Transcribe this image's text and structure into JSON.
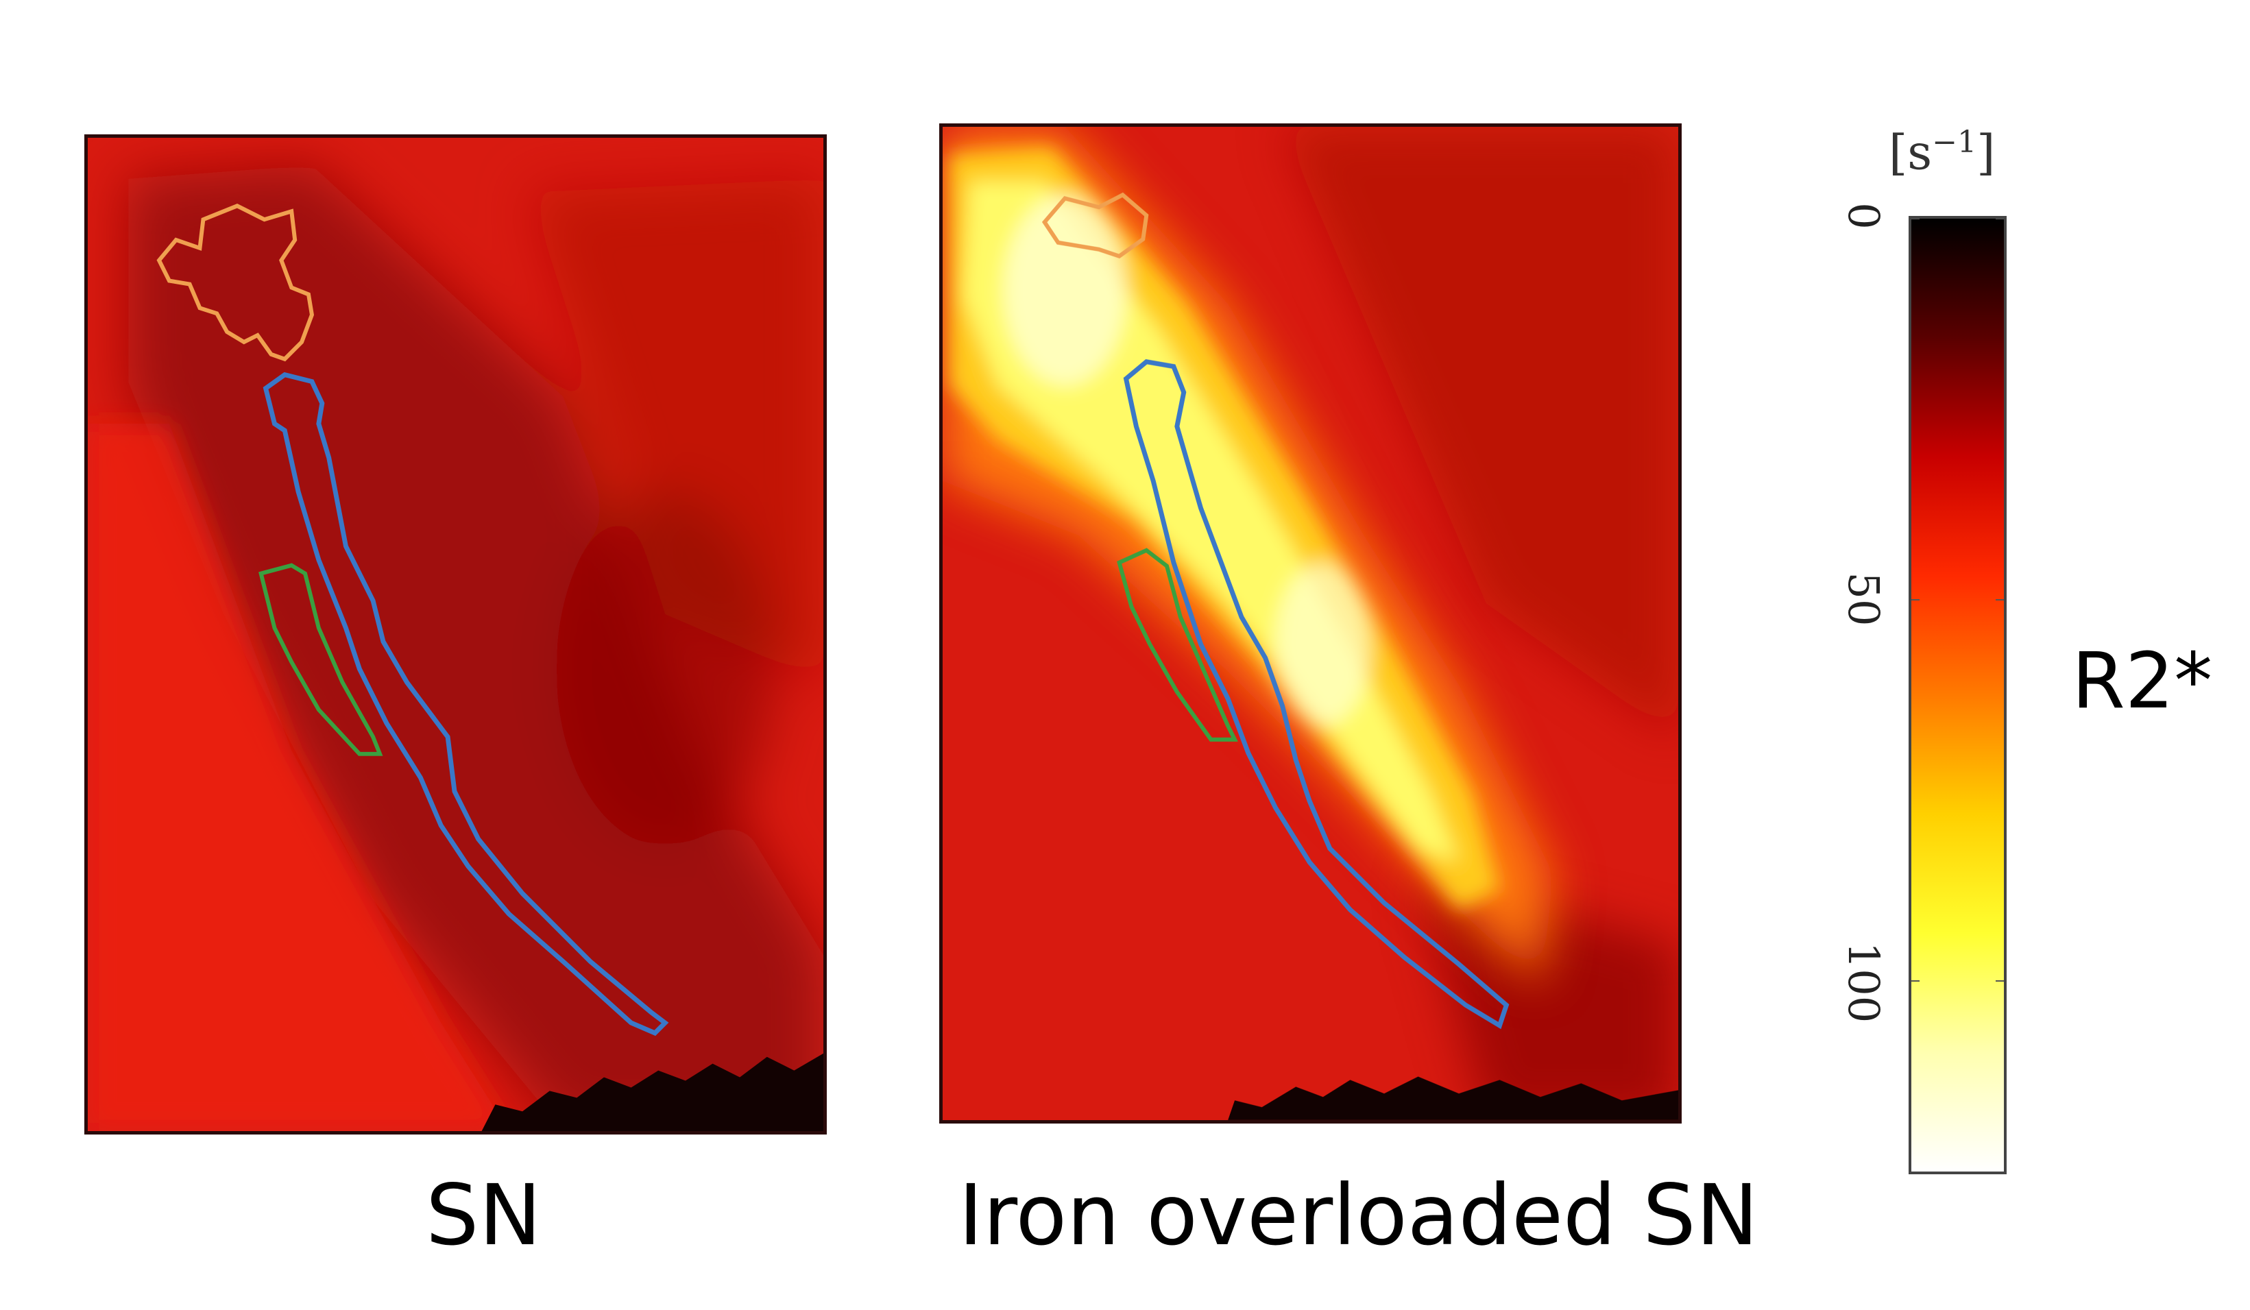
{
  "panels": [
    {
      "caption": "SN"
    },
    {
      "caption": "Iron overloaded SN"
    }
  ],
  "colorbar": {
    "unit_base": "[s",
    "unit_exp": "−1",
    "unit_close": "]",
    "quantity": "R2*",
    "ticks": [
      "0",
      "50",
      "100"
    ],
    "range": [
      0,
      125
    ],
    "colormap": [
      "#000000",
      "#5a0000",
      "#c80000",
      "#ff2a00",
      "#ff7a00",
      "#ffd000",
      "#ffff30",
      "#ffffb0",
      "#ffffff"
    ]
  },
  "roi_colors": {
    "orange": "#f0a050",
    "blue": "#3a78c8",
    "green": "#3aa040"
  }
}
